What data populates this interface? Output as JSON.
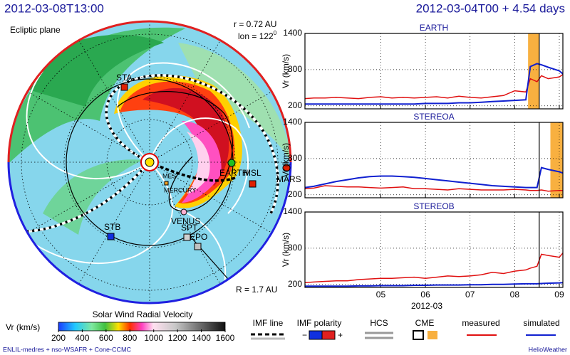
{
  "header": {
    "left": "2012-03-08T13:00",
    "right": "2012-03-04T00 + 4.54 days"
  },
  "polar": {
    "plane": "Ecliptic plane",
    "r": "r = 0.72 AU",
    "lon": "lon = 122",
    "lon_sup": "0",
    "R": "R = 1.7 AU",
    "bodies": {
      "sta": "STA",
      "stb": "STB",
      "earth": "EARTH",
      "msl": "MSL",
      "mars": "MARS",
      "venus": "VENUS",
      "mes": "MES",
      "mercury": "MERCURY",
      "spt": "SPT",
      "epo": "EPO"
    }
  },
  "colorbar": {
    "title": "Solar Wind Radial Velocity",
    "label": "Vr (km/s)",
    "range": [
      200,
      1600
    ],
    "ticks": [
      200,
      400,
      600,
      800,
      1000,
      1200,
      1400,
      1600
    ]
  },
  "legend": {
    "imf_line": "IMF line",
    "imf_polarity": "IMF polarity",
    "minus": "−",
    "plus": "+",
    "hcs": "HCS",
    "cme": "CME"
  },
  "footer": {
    "left": "ENLIL-medres + nso-WSAFR + Cone-CCMC",
    "right": "HelioWeather"
  },
  "chart_data": [
    {
      "type": "line",
      "title": "EARTH",
      "y_label": "Vr (km/s)",
      "xlim": [
        3.3,
        9.08
      ],
      "xticks": [
        5,
        6,
        7,
        8,
        9
      ],
      "ylim": [
        150,
        1400
      ],
      "yticks": [
        200,
        800,
        1400
      ],
      "grid": true,
      "cme": [
        8.3,
        8.55
      ],
      "time_marker": 8.55,
      "x": [
        3.3,
        3.5,
        3.75,
        4,
        4.25,
        4.5,
        4.75,
        5,
        5.25,
        5.5,
        5.75,
        6,
        6.25,
        6.5,
        6.75,
        7,
        7.25,
        7.5,
        7.75,
        8,
        8.25,
        8.35,
        8.5,
        8.6,
        8.75,
        9,
        9.08
      ],
      "series": [
        {
          "name": "measured",
          "color": "#e01010",
          "values": [
            320,
            330,
            330,
            340,
            330,
            320,
            340,
            350,
            330,
            340,
            330,
            340,
            350,
            330,
            360,
            340,
            330,
            350,
            370,
            450,
            430,
            650,
            600,
            700,
            650,
            680,
            720
          ]
        },
        {
          "name": "simulated",
          "color": "#1020d0",
          "values": [
            230,
            230,
            230,
            230,
            230,
            230,
            230,
            230,
            230,
            230,
            230,
            240,
            240,
            240,
            250,
            250,
            260,
            270,
            280,
            290,
            300,
            850,
            900,
            880,
            840,
            780,
            730
          ]
        }
      ]
    },
    {
      "type": "line",
      "title": "STEREOA",
      "y_label": "Vr (km/s)",
      "xlim": [
        3.3,
        9.08
      ],
      "xticks": [
        5,
        6,
        7,
        8,
        9
      ],
      "ylim": [
        150,
        1400
      ],
      "yticks": [
        200,
        800,
        1400
      ],
      "grid": true,
      "cme": [
        8.8,
        9.08
      ],
      "time_marker": 8.55,
      "x": [
        3.3,
        3.5,
        3.75,
        4,
        4.25,
        4.5,
        4.75,
        5,
        5.25,
        5.5,
        5.75,
        6,
        6.25,
        6.5,
        6.75,
        7,
        7.25,
        7.5,
        7.75,
        8,
        8.25,
        8.35,
        8.5,
        8.6,
        8.75,
        9,
        9.08
      ],
      "series": [
        {
          "name": "measured",
          "color": "#e01010",
          "values": [
            300,
            310,
            350,
            340,
            330,
            330,
            320,
            310,
            320,
            330,
            300,
            300,
            290,
            280,
            300,
            290,
            280,
            280,
            280,
            290,
            280,
            270,
            270,
            280,
            260,
            270,
            270
          ]
        },
        {
          "name": "simulated",
          "color": "#1020d0",
          "values": [
            320,
            340,
            380,
            420,
            450,
            480,
            500,
            510,
            510,
            500,
            490,
            470,
            450,
            430,
            410,
            390,
            370,
            350,
            340,
            330,
            320,
            320,
            320,
            650,
            620,
            580,
            560
          ]
        }
      ]
    },
    {
      "type": "line",
      "title": "STEREOB",
      "y_label": "Vr (km/s)",
      "x_label": "2012-03",
      "xlim": [
        3.3,
        9.08
      ],
      "xticks": [
        {
          "value": 5,
          "label": "05"
        },
        {
          "value": 6,
          "label": "06"
        },
        {
          "value": 7,
          "label": "07"
        },
        {
          "value": 8,
          "label": "08"
        },
        {
          "value": 9,
          "label": "09"
        }
      ],
      "ylim": [
        150,
        1400
      ],
      "yticks": [
        200,
        800,
        1400
      ],
      "grid": true,
      "time_marker": 8.55,
      "x": [
        3.3,
        3.5,
        3.75,
        4,
        4.25,
        4.5,
        4.75,
        5,
        5.25,
        5.5,
        5.75,
        6,
        6.25,
        6.5,
        6.75,
        7,
        7.25,
        7.5,
        7.75,
        8,
        8.25,
        8.35,
        8.5,
        8.6,
        8.75,
        9,
        9.08
      ],
      "series": [
        {
          "name": "measured",
          "color": "#e01010",
          "values": [
            230,
            240,
            250,
            260,
            260,
            280,
            290,
            300,
            300,
            310,
            320,
            300,
            320,
            340,
            330,
            340,
            360,
            400,
            380,
            420,
            440,
            470,
            500,
            700,
            680,
            650,
            720
          ]
        },
        {
          "name": "simulated",
          "color": "#1020d0",
          "values": [
            170,
            170,
            170,
            170,
            170,
            175,
            175,
            180,
            180,
            180,
            185,
            185,
            190,
            190,
            190,
            195,
            195,
            200,
            200,
            205,
            210,
            210,
            210,
            215,
            220,
            225,
            230
          ]
        }
      ]
    }
  ]
}
